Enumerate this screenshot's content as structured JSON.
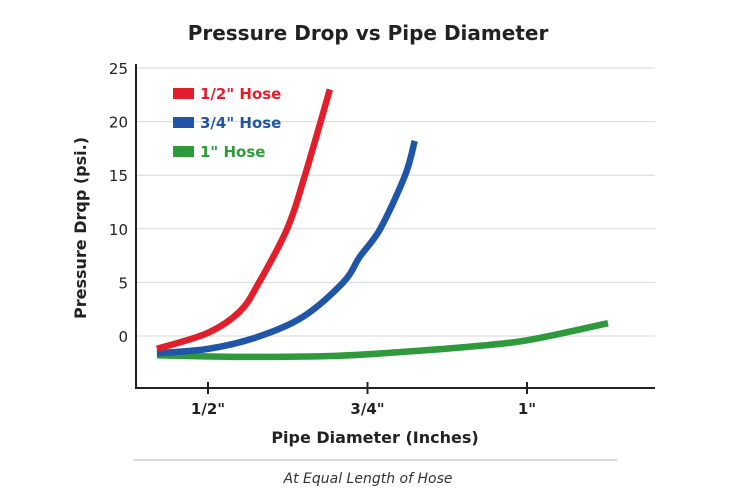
{
  "chart_data": {
    "type": "line",
    "title": "Pressure Drop vs Pipe Diameter",
    "xlabel": "Pipe Diameter (Inches)",
    "ylabel": "Pressure Drqp (psi.)",
    "note": "At Equal Length of Hose",
    "xlim": [
      0.387,
      1.2
    ],
    "ylim": [
      -4.8,
      25
    ],
    "x_ticks": [
      {
        "value": 0.5,
        "label": "1/2\""
      },
      {
        "value": 0.75,
        "label": "3/4\""
      },
      {
        "value": 1.0,
        "label": "1\""
      }
    ],
    "y_ticks": [
      0,
      5,
      10,
      15,
      20,
      25
    ],
    "grid": "horizontal",
    "legend_position": "top-left",
    "series": [
      {
        "name": "1/2\" Hose",
        "color": "#e31e2b",
        "points": [
          [
            0.42,
            -1.2
          ],
          [
            0.5,
            0.3
          ],
          [
            0.55,
            2.3
          ],
          [
            0.58,
            5
          ],
          [
            0.624,
            10
          ],
          [
            0.652,
            15
          ],
          [
            0.691,
            23
          ]
        ]
      },
      {
        "name": "3/4\" Hose",
        "color": "#1f56a8",
        "points": [
          [
            0.42,
            -1.6
          ],
          [
            0.5,
            -1.2
          ],
          [
            0.577,
            -0.1
          ],
          [
            0.649,
            1.8
          ],
          [
            0.712,
            5
          ],
          [
            0.738,
            7.4
          ],
          [
            0.77,
            10
          ],
          [
            0.809,
            15
          ],
          [
            0.824,
            18.2
          ]
        ]
      },
      {
        "name": "1\" Hose",
        "color": "#2e9a3c",
        "points": [
          [
            0.42,
            -1.8
          ],
          [
            0.55,
            -1.95
          ],
          [
            0.7,
            -1.85
          ],
          [
            0.8,
            -1.5
          ],
          [
            0.9,
            -1.05
          ],
          [
            1.0,
            -0.4
          ],
          [
            1.127,
            1.2
          ]
        ]
      }
    ]
  }
}
